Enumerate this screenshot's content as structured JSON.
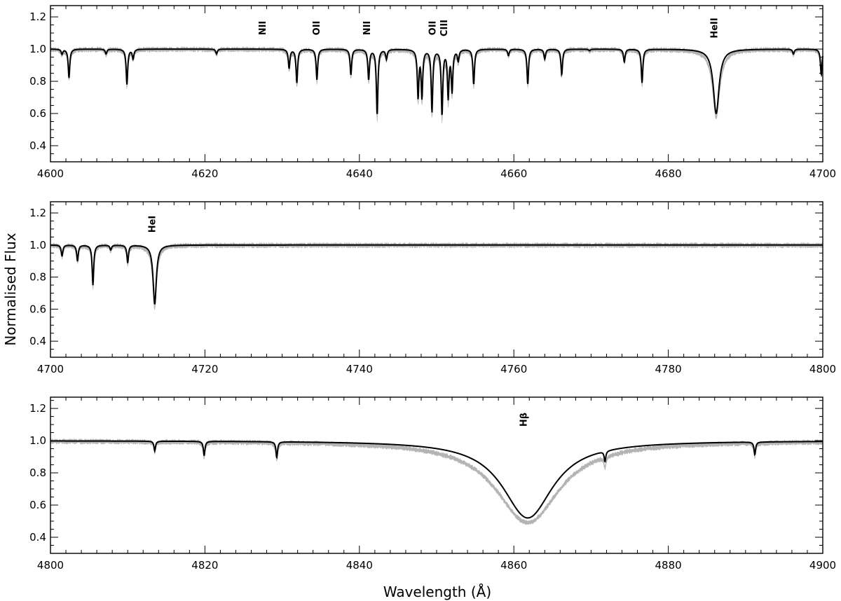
{
  "chart_data": {
    "type": "line",
    "title": "",
    "xlabel": "Wavelength (Å)",
    "ylabel": "Normalised Flux",
    "series": [
      {
        "name": "",
        "role": "observed",
        "color": "#b4b4b4"
      },
      {
        "name": "",
        "role": "model",
        "color": "#000000"
      }
    ],
    "panels": [
      {
        "xlim": [
          4600,
          4700
        ],
        "ylim": [
          0.3,
          1.27
        ],
        "xticks": [
          4600,
          4620,
          4640,
          4660,
          4680,
          4700
        ],
        "yticks": [
          0.4,
          0.6,
          0.8,
          1.0,
          1.2
        ],
        "ytick_labels": [
          "0.4",
          "0.6",
          "0.8",
          "1.0",
          "1.2"
        ],
        "line_labels": [
          {
            "text": "NII",
            "x": 4627.5
          },
          {
            "text": "OII",
            "x": 4634.5
          },
          {
            "text": "NII",
            "x": 4641.0
          },
          {
            "text": "OII",
            "x": 4649.5
          },
          {
            "text": "CIII",
            "x": 4651.0
          },
          {
            "text": "HeII",
            "x": 4686.0
          }
        ],
        "lines": [
          {
            "center": 4601.5,
            "depth": 0.03,
            "width": 0.12
          },
          {
            "center": 4602.4,
            "depth": 0.18,
            "width": 0.12
          },
          {
            "center": 4607.2,
            "depth": 0.03,
            "width": 0.12
          },
          {
            "center": 4609.9,
            "depth": 0.22,
            "width": 0.12
          },
          {
            "center": 4610.7,
            "depth": 0.06,
            "width": 0.12
          },
          {
            "center": 4621.5,
            "depth": 0.03,
            "width": 0.12
          },
          {
            "center": 4630.9,
            "depth": 0.12,
            "width": 0.12
          },
          {
            "center": 4631.9,
            "depth": 0.21,
            "width": 0.12
          },
          {
            "center": 4634.5,
            "depth": 0.19,
            "width": 0.12
          },
          {
            "center": 4638.9,
            "depth": 0.16,
            "width": 0.12
          },
          {
            "center": 4641.2,
            "depth": 0.19,
            "width": 0.12
          },
          {
            "center": 4642.3,
            "depth": 0.41,
            "width": 0.12
          },
          {
            "center": 4643.5,
            "depth": 0.06,
            "width": 0.12
          },
          {
            "center": 4647.6,
            "depth": 0.3,
            "width": 0.12
          },
          {
            "center": 4648.1,
            "depth": 0.3,
            "width": 0.12
          },
          {
            "center": 4649.4,
            "depth": 0.39,
            "width": 0.12
          },
          {
            "center": 4650.7,
            "depth": 0.41,
            "width": 0.12
          },
          {
            "center": 4651.5,
            "depth": 0.3,
            "width": 0.12
          },
          {
            "center": 4652.0,
            "depth": 0.26,
            "width": 0.12
          },
          {
            "center": 4652.8,
            "depth": 0.07,
            "width": 0.12
          },
          {
            "center": 4654.8,
            "depth": 0.22,
            "width": 0.12
          },
          {
            "center": 4659.3,
            "depth": 0.04,
            "width": 0.12
          },
          {
            "center": 4661.8,
            "depth": 0.22,
            "width": 0.12
          },
          {
            "center": 4664.0,
            "depth": 0.06,
            "width": 0.12
          },
          {
            "center": 4666.2,
            "depth": 0.16,
            "width": 0.12
          },
          {
            "center": 4669.8,
            "depth": 0.01,
            "width": 0.12
          },
          {
            "center": 4674.3,
            "depth": 0.08,
            "width": 0.12
          },
          {
            "center": 4676.6,
            "depth": 0.21,
            "width": 0.12
          },
          {
            "center": 4686.2,
            "depth": 0.4,
            "width": 0.45
          },
          {
            "center": 4696.2,
            "depth": 0.03,
            "width": 0.12
          },
          {
            "center": 4699.8,
            "depth": 0.16,
            "width": 0.12
          }
        ]
      },
      {
        "xlim": [
          4700,
          4800
        ],
        "ylim": [
          0.3,
          1.27
        ],
        "xticks": [
          4700,
          4720,
          4740,
          4760,
          4780,
          4800
        ],
        "yticks": [
          0.4,
          0.6,
          0.8,
          1.0,
          1.2
        ],
        "ytick_labels": [
          "0.4",
          "0.6",
          "0.8",
          "1.0",
          "1.2"
        ],
        "line_labels": [
          {
            "text": "HeI",
            "x": 4713.2
          }
        ],
        "lines": [
          {
            "center": 4701.5,
            "depth": 0.07,
            "width": 0.12
          },
          {
            "center": 4703.5,
            "depth": 0.1,
            "width": 0.12
          },
          {
            "center": 4705.5,
            "depth": 0.25,
            "width": 0.12
          },
          {
            "center": 4707.8,
            "depth": 0.03,
            "width": 0.12
          },
          {
            "center": 4710.0,
            "depth": 0.11,
            "width": 0.12
          },
          {
            "center": 4713.5,
            "depth": 0.37,
            "width": 0.25
          }
        ]
      },
      {
        "xlim": [
          4800,
          4900
        ],
        "ylim": [
          0.3,
          1.27
        ],
        "xticks": [
          4800,
          4820,
          4840,
          4860,
          4880,
          4900
        ],
        "yticks": [
          0.4,
          0.6,
          0.8,
          1.0,
          1.2
        ],
        "ytick_labels": [
          "0.4",
          "0.6",
          "0.8",
          "1.0",
          "1.2"
        ],
        "line_labels": [
          {
            "text": "Hβ",
            "x": 4861.3
          }
        ],
        "lines": [
          {
            "center": 4813.5,
            "depth": 0.06,
            "width": 0.12
          },
          {
            "center": 4819.9,
            "depth": 0.09,
            "width": 0.12
          },
          {
            "center": 4829.3,
            "depth": 0.1,
            "width": 0.12
          },
          {
            "center": 4861.8,
            "depth": 0.48,
            "width": 4.0
          },
          {
            "center": 4871.8,
            "depth": 0.07,
            "width": 0.12
          },
          {
            "center": 4891.2,
            "depth": 0.08,
            "width": 0.12
          }
        ]
      }
    ]
  }
}
